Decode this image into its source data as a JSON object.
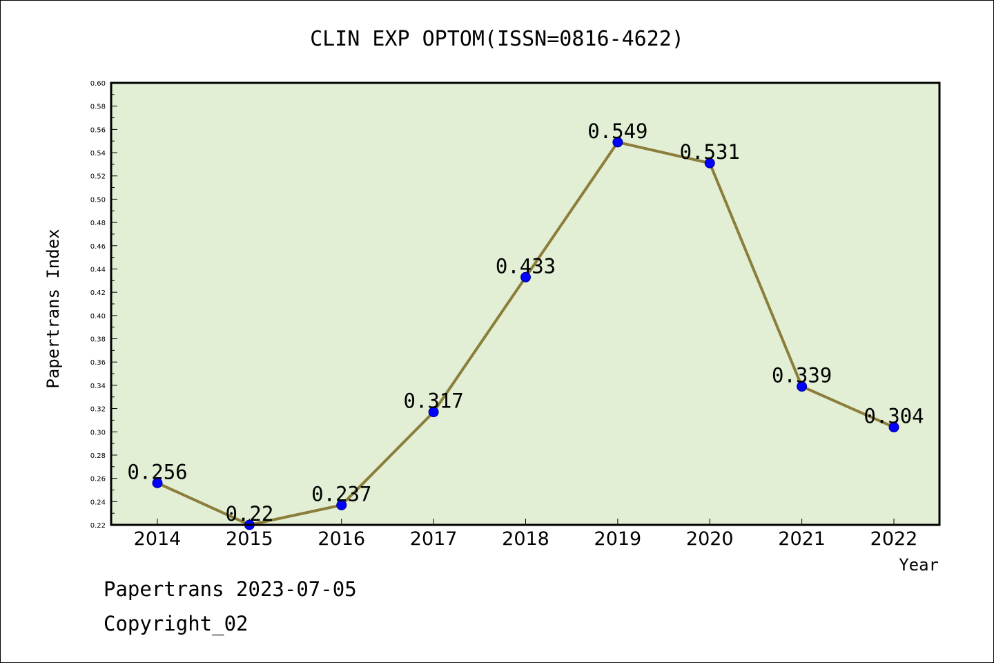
{
  "chart_data": {
    "type": "line",
    "title": "CLIN EXP OPTOM(ISSN=0816-4622)",
    "xlabel": "Year",
    "ylabel": "Papertrans Index",
    "categories": [
      "2014",
      "2015",
      "2016",
      "2017",
      "2018",
      "2019",
      "2020",
      "2021",
      "2022"
    ],
    "values": [
      0.256,
      0.22,
      0.237,
      0.317,
      0.433,
      0.549,
      0.531,
      0.339,
      0.304
    ],
    "data_labels": [
      "0.256",
      "0.22",
      "0.237",
      "0.317",
      "0.433",
      "0.549",
      "0.531",
      "0.339",
      "0.304"
    ],
    "ylim": [
      0.22,
      0.6
    ],
    "yticks": [
      "0.22",
      "0.24",
      "0.26",
      "0.28",
      "0.30",
      "0.32",
      "0.34",
      "0.36",
      "0.38",
      "0.40",
      "0.42",
      "0.44",
      "0.46",
      "0.48",
      "0.50",
      "0.52",
      "0.54",
      "0.56",
      "0.58",
      "0.60"
    ],
    "grid": false,
    "legend": "none",
    "colors": {
      "plot_background": "#e2efd5",
      "line": "#8b7d3a",
      "marker": "#0000ff",
      "marker_edge": "#00008b",
      "axis": "#000000"
    }
  },
  "footer": {
    "source": "Papertrans 2023-07-05",
    "copyright": "Copyright_02"
  }
}
